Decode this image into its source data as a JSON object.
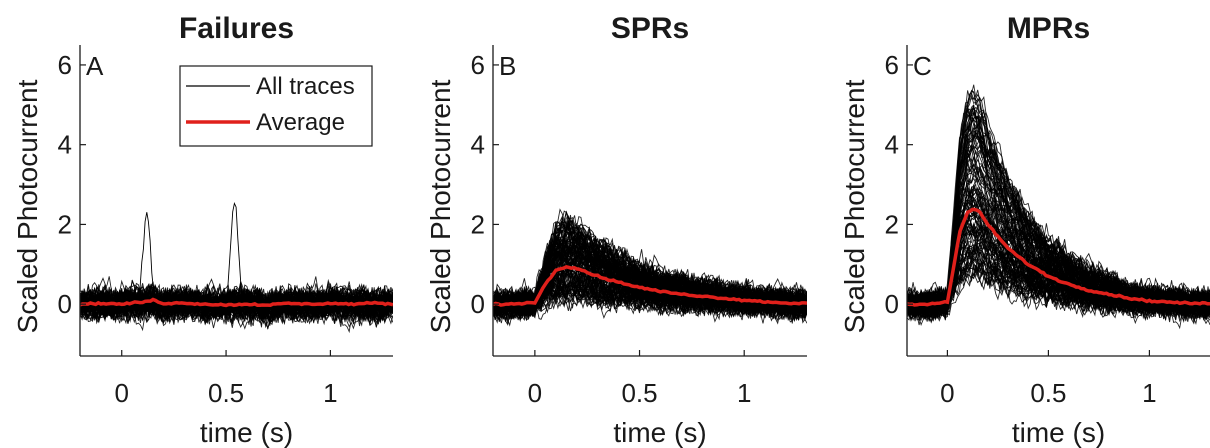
{
  "legend": {
    "items": [
      {
        "label": "All traces",
        "color": "#000000"
      },
      {
        "label": "Average",
        "color": "#e0201b"
      }
    ],
    "placement": "top-right of panel A"
  },
  "chart_data": [
    {
      "type": "line",
      "panel": "A",
      "title": "Failures",
      "xlabel": "time (s)",
      "ylabel": "Scaled Photocurrent",
      "xlim": [
        -0.2,
        1.3
      ],
      "ylim": [
        -1.3,
        6.5
      ],
      "xticks": [
        0,
        0.5,
        1
      ],
      "xtick_labels": [
        "0",
        "0.5",
        "1"
      ],
      "yticks": [
        0,
        2,
        4,
        6
      ],
      "ytick_labels": [
        "0",
        "2",
        "4",
        "6"
      ],
      "grid": false,
      "series": [
        {
          "name": "Average",
          "color": "#e0201b",
          "x": [
            -0.2,
            -0.1,
            0,
            0.05,
            0.1,
            0.15,
            0.2,
            0.3,
            0.4,
            0.5,
            0.6,
            0.7,
            0.8,
            0.9,
            1.0,
            1.1,
            1.2,
            1.3
          ],
          "y": [
            0,
            0.02,
            0.0,
            0.03,
            0.05,
            0.1,
            0.02,
            0.03,
            0.0,
            -0.02,
            0.0,
            -0.02,
            0.02,
            0.0,
            0.02,
            0.0,
            0.03,
            0.0
          ]
        },
        {
          "name": "All traces",
          "color": "#000000",
          "count": 80,
          "envelope_low": -1.3,
          "envelope_high": 1.2,
          "peak_values": [
            2.3,
            2.6
          ]
        }
      ]
    },
    {
      "type": "line",
      "panel": "B",
      "title": "SPRs",
      "xlabel": "time (s)",
      "ylabel": "Scaled Photocurrent",
      "xlim": [
        -0.2,
        1.3
      ],
      "ylim": [
        -1.3,
        6.5
      ],
      "xticks": [
        0,
        0.5,
        1
      ],
      "xtick_labels": [
        "0",
        "0.5",
        "1"
      ],
      "yticks": [
        0,
        2,
        4,
        6
      ],
      "ytick_labels": [
        "0",
        "2",
        "4",
        "6"
      ],
      "grid": false,
      "series": [
        {
          "name": "Average",
          "color": "#e0201b",
          "x": [
            -0.2,
            -0.1,
            0,
            0.05,
            0.1,
            0.15,
            0.2,
            0.3,
            0.4,
            0.5,
            0.6,
            0.7,
            0.8,
            0.9,
            1.0,
            1.1,
            1.2,
            1.3
          ],
          "y": [
            0,
            0.0,
            0.05,
            0.5,
            0.85,
            0.95,
            0.9,
            0.7,
            0.55,
            0.42,
            0.32,
            0.25,
            0.2,
            0.15,
            0.1,
            0.06,
            0.03,
            0.02
          ]
        },
        {
          "name": "All traces",
          "color": "#000000",
          "count": 120,
          "peak_max": 2.8
        }
      ]
    },
    {
      "type": "line",
      "panel": "C",
      "title": "MPRs",
      "xlabel": "time (s)",
      "ylabel": "Scaled Photocurrent",
      "xlim": [
        -0.2,
        1.3
      ],
      "ylim": [
        -1.3,
        6.5
      ],
      "xticks": [
        0,
        0.5,
        1
      ],
      "xtick_labels": [
        "0",
        "0.5",
        "1"
      ],
      "yticks": [
        0,
        2,
        4,
        6
      ],
      "ytick_labels": [
        "0",
        "2",
        "4",
        "6"
      ],
      "grid": false,
      "series": [
        {
          "name": "Average",
          "color": "#e0201b",
          "x": [
            -0.2,
            -0.1,
            0,
            0.03,
            0.06,
            0.1,
            0.13,
            0.16,
            0.2,
            0.3,
            0.4,
            0.5,
            0.6,
            0.7,
            0.8,
            0.9,
            1.0,
            1.1,
            1.2,
            1.3
          ],
          "y": [
            0,
            0.0,
            0.05,
            0.9,
            1.8,
            2.3,
            2.4,
            2.3,
            2.0,
            1.4,
            1.0,
            0.7,
            0.5,
            0.35,
            0.25,
            0.15,
            0.08,
            0.05,
            0.02,
            0.02
          ]
        },
        {
          "name": "All traces",
          "color": "#000000",
          "count": 120,
          "peak_max": 6.0
        }
      ]
    }
  ]
}
